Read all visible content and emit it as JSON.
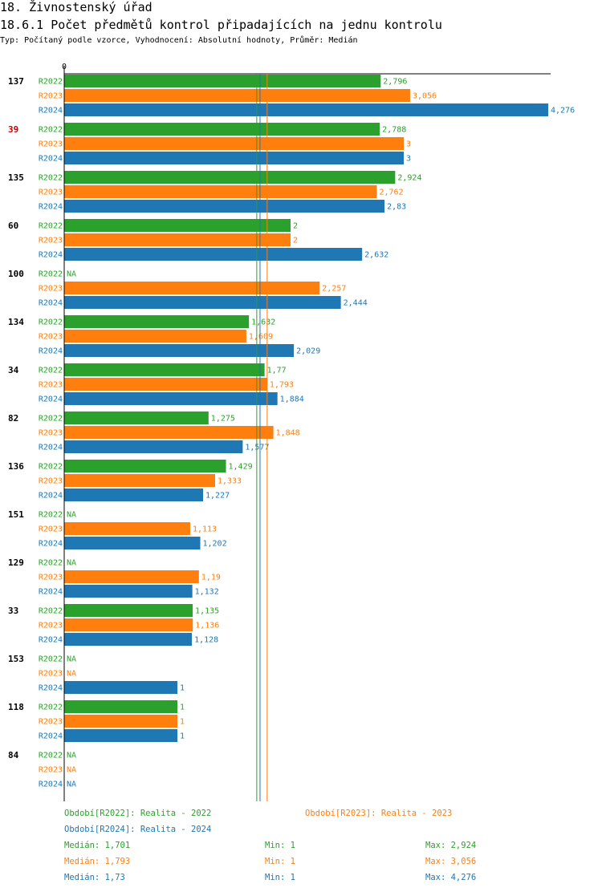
{
  "header": {
    "title": "18. Živnostenský úřad",
    "subtitle": "18.6.1 Počet předmětů kontrol připadajících na jednu kontrolu",
    "meta": "Typ: Počítaný podle vzorce, Vyhodnocení: Absolutní hodnoty, Průměr: Medián"
  },
  "colors": {
    "R2022": "#2ca02c",
    "R2023": "#ff7f0e",
    "R2024": "#1f77b4",
    "highlight": "#cc0000"
  },
  "chart_data": {
    "type": "bar",
    "orientation": "horizontal",
    "axis_zero_label": "0",
    "xlim": [
      0,
      4.276
    ],
    "series_names": [
      "R2022",
      "R2023",
      "R2024"
    ],
    "na_label": "NA",
    "median_lines": [
      1.701,
      1.793,
      1.73
    ],
    "groups": [
      {
        "id": "137",
        "highlight": false,
        "values": [
          2.796,
          3.056,
          4.276
        ],
        "labels": [
          "2,796",
          "3,056",
          "4,276"
        ]
      },
      {
        "id": "39",
        "highlight": true,
        "values": [
          2.788,
          3,
          3
        ],
        "labels": [
          "2,788",
          "3",
          "3"
        ]
      },
      {
        "id": "135",
        "highlight": false,
        "values": [
          2.924,
          2.762,
          2.83
        ],
        "labels": [
          "2,924",
          "2,762",
          "2,83"
        ]
      },
      {
        "id": "60",
        "highlight": false,
        "values": [
          2,
          2,
          2.632
        ],
        "labels": [
          "2",
          "2",
          "2,632"
        ]
      },
      {
        "id": "100",
        "highlight": false,
        "values": [
          null,
          2.257,
          2.444
        ],
        "labels": [
          "NA",
          "2,257",
          "2,444"
        ]
      },
      {
        "id": "134",
        "highlight": false,
        "values": [
          1.632,
          1.609,
          2.029
        ],
        "labels": [
          "1,632",
          "1,609",
          "2,029"
        ]
      },
      {
        "id": "34",
        "highlight": false,
        "values": [
          1.77,
          1.793,
          1.884
        ],
        "labels": [
          "1,77",
          "1,793",
          "1,884"
        ]
      },
      {
        "id": "82",
        "highlight": false,
        "values": [
          1.275,
          1.848,
          1.577
        ],
        "labels": [
          "1,275",
          "1,848",
          "1,577"
        ]
      },
      {
        "id": "136",
        "highlight": false,
        "values": [
          1.429,
          1.333,
          1.227
        ],
        "labels": [
          "1,429",
          "1,333",
          "1,227"
        ]
      },
      {
        "id": "151",
        "highlight": false,
        "values": [
          null,
          1.113,
          1.202
        ],
        "labels": [
          "NA",
          "1,113",
          "1,202"
        ]
      },
      {
        "id": "129",
        "highlight": false,
        "values": [
          null,
          1.19,
          1.132
        ],
        "labels": [
          "NA",
          "1,19",
          "1,132"
        ]
      },
      {
        "id": "33",
        "highlight": false,
        "values": [
          1.135,
          1.136,
          1.128
        ],
        "labels": [
          "1,135",
          "1,136",
          "1,128"
        ]
      },
      {
        "id": "153",
        "highlight": false,
        "values": [
          null,
          null,
          1
        ],
        "labels": [
          "NA",
          "NA",
          "1"
        ]
      },
      {
        "id": "118",
        "highlight": false,
        "values": [
          1,
          1,
          1
        ],
        "labels": [
          "1",
          "1",
          "1"
        ]
      },
      {
        "id": "84",
        "highlight": false,
        "values": [
          null,
          null,
          null
        ],
        "labels": [
          "NA",
          "NA",
          "NA"
        ]
      }
    ]
  },
  "legend": {
    "periods": [
      "Období[R2022]: Realita - 2022",
      "Období[R2023]: Realita - 2023",
      "Období[R2024]: Realita - 2024"
    ],
    "stats": [
      {
        "median": "Medián: 1,701",
        "min": "Min: 1",
        "max": "Max: 2,924"
      },
      {
        "median": "Medián: 1,793",
        "min": "Min: 1",
        "max": "Max: 3,056"
      },
      {
        "median": "Medián: 1,73",
        "min": "Min: 1",
        "max": "Max: 4,276"
      }
    ]
  }
}
